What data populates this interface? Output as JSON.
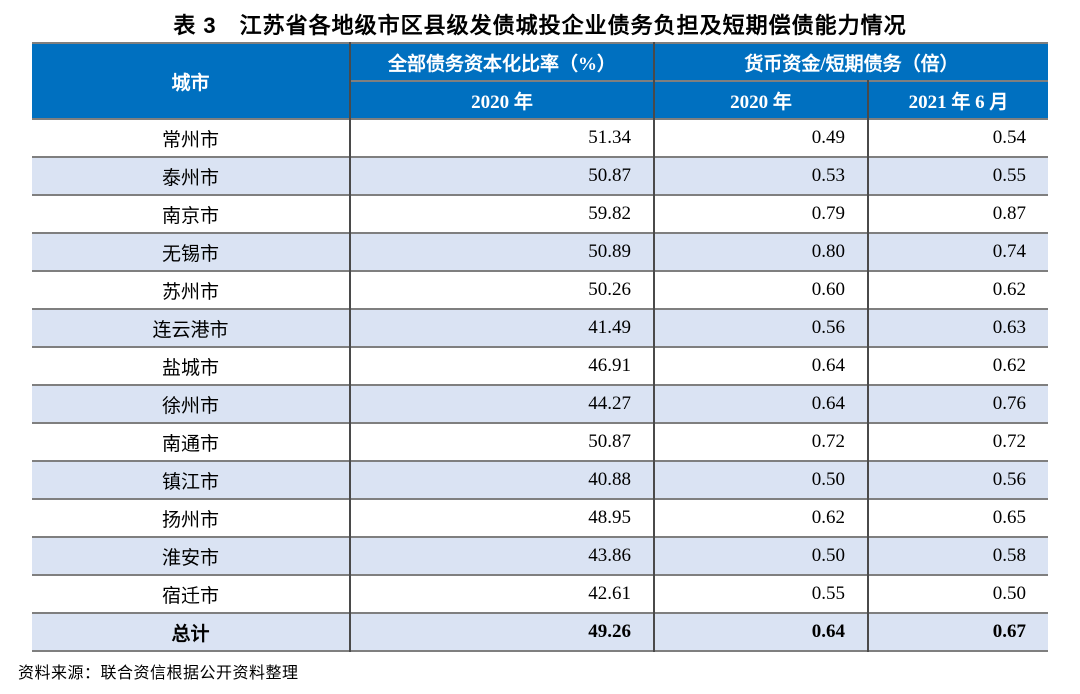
{
  "title": "表 3　江苏省各地级市区县级发债城投企业债务负担及短期偿债能力情况",
  "source_note": "资料来源：联合资信根据公开资料整理",
  "colors": {
    "header_bg": "#0070C0",
    "stripe_bg": "#DAE3F3",
    "hline": "#7F7F7F",
    "vline": "#4A4A4A"
  },
  "table": {
    "header": {
      "city": "城市",
      "debt_ratio_group": "全部债务资本化比率（%）",
      "cash_ratio_group": "货币资金/短期债务（倍）"
    },
    "subheader": {
      "debt_2020": "2020 年",
      "cash_2020": "2020 年",
      "cash_2021": "2021 年 6 月"
    },
    "rows": [
      {
        "city": "常州市",
        "debt_2020": "51.34",
        "cash_2020": "0.49",
        "cash_2021": "0.54",
        "total": false
      },
      {
        "city": "泰州市",
        "debt_2020": "50.87",
        "cash_2020": "0.53",
        "cash_2021": "0.55",
        "total": false
      },
      {
        "city": "南京市",
        "debt_2020": "59.82",
        "cash_2020": "0.79",
        "cash_2021": "0.87",
        "total": false
      },
      {
        "city": "无锡市",
        "debt_2020": "50.89",
        "cash_2020": "0.80",
        "cash_2021": "0.74",
        "total": false
      },
      {
        "city": "苏州市",
        "debt_2020": "50.26",
        "cash_2020": "0.60",
        "cash_2021": "0.62",
        "total": false
      },
      {
        "city": "连云港市",
        "debt_2020": "41.49",
        "cash_2020": "0.56",
        "cash_2021": "0.63",
        "total": false
      },
      {
        "city": "盐城市",
        "debt_2020": "46.91",
        "cash_2020": "0.64",
        "cash_2021": "0.62",
        "total": false
      },
      {
        "city": "徐州市",
        "debt_2020": "44.27",
        "cash_2020": "0.64",
        "cash_2021": "0.76",
        "total": false
      },
      {
        "city": "南通市",
        "debt_2020": "50.87",
        "cash_2020": "0.72",
        "cash_2021": "0.72",
        "total": false
      },
      {
        "city": "镇江市",
        "debt_2020": "40.88",
        "cash_2020": "0.50",
        "cash_2021": "0.56",
        "total": false
      },
      {
        "city": "扬州市",
        "debt_2020": "48.95",
        "cash_2020": "0.62",
        "cash_2021": "0.65",
        "total": false
      },
      {
        "city": "淮安市",
        "debt_2020": "43.86",
        "cash_2020": "0.50",
        "cash_2021": "0.58",
        "total": false
      },
      {
        "city": "宿迁市",
        "debt_2020": "42.61",
        "cash_2020": "0.55",
        "cash_2021": "0.50",
        "total": false
      },
      {
        "city": "总计",
        "debt_2020": "49.26",
        "cash_2020": "0.64",
        "cash_2021": "0.67",
        "total": true
      }
    ]
  }
}
